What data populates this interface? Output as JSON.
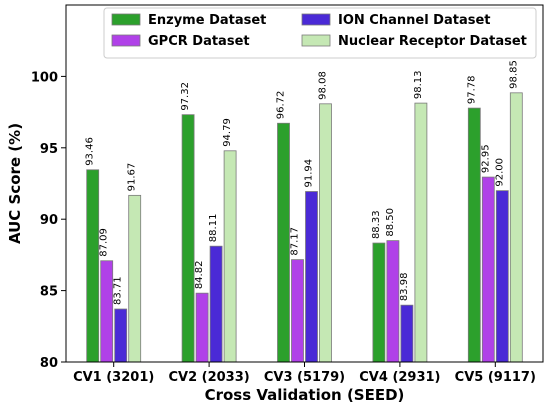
{
  "chart_data": {
    "type": "bar",
    "title": "",
    "xlabel": "Cross Validation (SEED)",
    "ylabel": "AUC Score (%)",
    "ylim": [
      80,
      105
    ],
    "yticks": [
      80,
      85,
      90,
      95,
      100
    ],
    "grid": false,
    "legend_position": "top",
    "categories": [
      "CV1 (3201)",
      "CV2 (2033)",
      "CV3 (5179)",
      "CV4 (2931)",
      "CV5 (9117)"
    ],
    "series": [
      {
        "name": "Enzyme Dataset",
        "color": "#2ca02c",
        "values": [
          93.46,
          97.32,
          96.72,
          88.33,
          97.78
        ]
      },
      {
        "name": "GPCR Dataset",
        "color": "#b041e8",
        "values": [
          87.09,
          84.82,
          87.17,
          88.5,
          92.95
        ]
      },
      {
        "name": "ION Channel Dataset",
        "color": "#4a2ad6",
        "values": [
          83.71,
          88.11,
          91.94,
          83.98,
          92.0
        ]
      },
      {
        "name": "Nuclear Receptor Dataset",
        "color": "#c5e8b4",
        "values": [
          91.67,
          94.79,
          98.08,
          98.13,
          98.85
        ]
      }
    ],
    "data_labels": [
      [
        "93.46",
        "97.32",
        "96.72",
        "88.33",
        "97.78"
      ],
      [
        "87.09",
        "84.82",
        "87.17",
        "88.50",
        "92.95"
      ],
      [
        "83.71",
        "88.11",
        "91.94",
        "83.98",
        "92.00"
      ],
      [
        "91.67",
        "94.79",
        "98.08",
        "98.13",
        "98.85"
      ]
    ]
  }
}
